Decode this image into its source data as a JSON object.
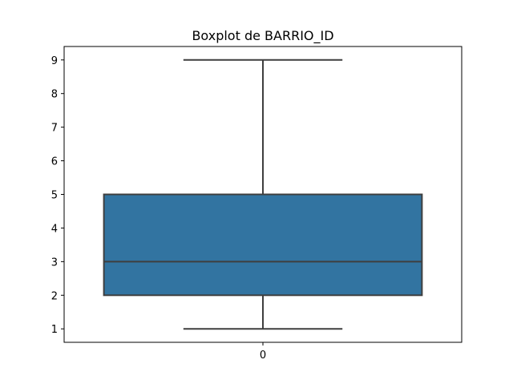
{
  "chart_data": {
    "type": "box",
    "title": "Boxplot de BARRIO_ID",
    "xlabel": "",
    "ylabel": "",
    "categories": [
      "0"
    ],
    "boxes": [
      {
        "category": "0",
        "whisker_low": 1,
        "q1": 2,
        "median": 3,
        "q3": 5,
        "whisker_high": 9,
        "color": "#3274a1"
      }
    ],
    "yticks": [
      1,
      2,
      3,
      4,
      5,
      6,
      7,
      8,
      9
    ],
    "ylim": [
      0.6,
      9.4
    ],
    "grid": false,
    "legend": "none"
  },
  "colors": {
    "box_fill": "#3274a1",
    "line": "#3f3f3f",
    "axis": "#000000",
    "background": "#ffffff"
  }
}
